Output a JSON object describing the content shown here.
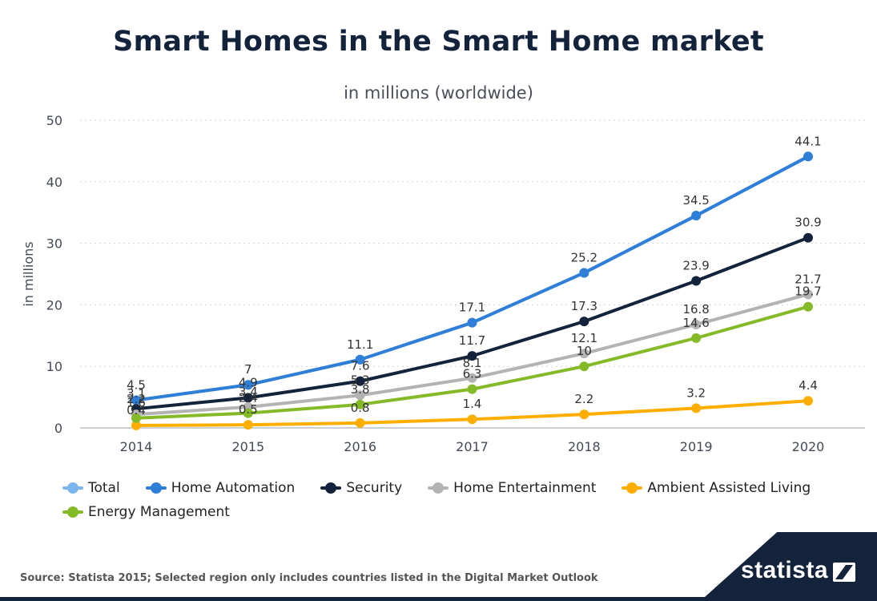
{
  "title": "Smart Homes in the Smart Home market",
  "subtitle": "in millions (worldwide)",
  "source": "Source: Statista 2015; Selected region only includes countries listed in the Digital Market Outlook",
  "brand": "statista",
  "colors": {
    "title": "#13233c",
    "grid": "#cfd3da",
    "axis": "#444a55",
    "brand_bg": "#13233c"
  },
  "chart_data": {
    "type": "line",
    "title": "Smart Homes in the Smart Home market",
    "subtitle": "in millions (worldwide)",
    "xlabel": "",
    "ylabel": "in millions",
    "ylim": [
      0,
      50
    ],
    "yticks": [
      0,
      10,
      20,
      30,
      40,
      50
    ],
    "categories": [
      "2014",
      "2015",
      "2016",
      "2017",
      "2018",
      "2019",
      "2020"
    ],
    "grid": true,
    "legend_position": "bottom",
    "series": [
      {
        "name": "Total",
        "color": "#7cb5ec",
        "values": [
          4.5,
          7,
          11.1,
          17.1,
          25.2,
          34.5,
          44.1
        ],
        "show_labels": false
      },
      {
        "name": "Home Automation",
        "color": "#2f7ed8",
        "values": [
          4.5,
          7,
          11.1,
          17.1,
          25.2,
          34.5,
          44.1
        ],
        "show_labels": true
      },
      {
        "name": "Security",
        "color": "#13233c",
        "values": [
          3.1,
          4.9,
          7.6,
          11.7,
          17.3,
          23.9,
          30.9
        ],
        "show_labels": true
      },
      {
        "name": "Home Entertainment",
        "color": "#b3b3b3",
        "values": [
          2.2,
          3.4,
          5.3,
          8.1,
          12.1,
          16.8,
          21.7
        ],
        "show_labels": true
      },
      {
        "name": "Ambient Assisted Living",
        "color": "#ffae00",
        "values": [
          0.4,
          0.5,
          0.8,
          1.4,
          2.2,
          3.2,
          4.4
        ],
        "show_labels": true
      },
      {
        "name": "Energy Management",
        "color": "#84ba28",
        "values": [
          1.6,
          2.4,
          3.8,
          6.3,
          10,
          14.6,
          19.7
        ],
        "show_labels": true
      }
    ]
  }
}
